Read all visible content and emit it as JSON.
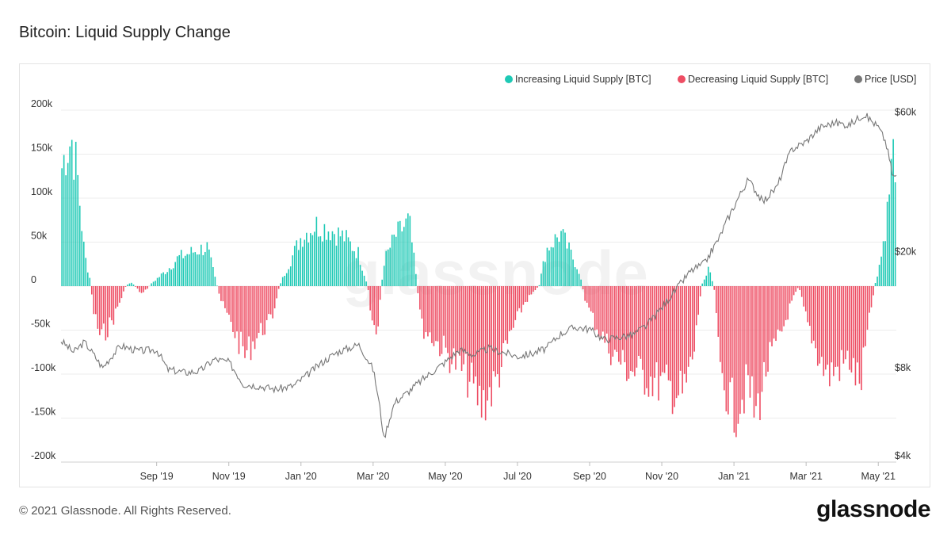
{
  "header": {
    "title": "Bitcoin: Liquid Supply Change"
  },
  "footer": {
    "copyright": "© 2021 Glassnode. All Rights Reserved.",
    "brand": "glassnode"
  },
  "watermark": "glassnode",
  "colors": {
    "increase": "#1ec9b5",
    "decrease": "#ee4d63",
    "price": "#777777",
    "grid": "#ececec"
  },
  "chart_data": {
    "type": "bar+line",
    "title": "Bitcoin: Liquid Supply Change",
    "legend": [
      {
        "name": "Increasing Liquid Supply [BTC]",
        "color": "#1ec9b5"
      },
      {
        "name": "Decreasing Liquid Supply [BTC]",
        "color": "#ee4d63"
      },
      {
        "name": "Price [USD]",
        "color": "#777777"
      }
    ],
    "legend_position": "top-right",
    "y_left": {
      "ylim": [
        -200000,
        200000
      ],
      "ticks": [
        200000,
        150000,
        100000,
        50000,
        0,
        -50000,
        -100000,
        -150000,
        -200000
      ],
      "tick_labels": [
        "200k",
        "150k",
        "100k",
        "50k",
        "0",
        "-50k",
        "-100k",
        "-150k",
        "-200k"
      ]
    },
    "y_right": {
      "scale": "log",
      "ylim": [
        4000,
        64000
      ],
      "ticks": [
        60000,
        20000,
        8000,
        4000
      ],
      "tick_labels": [
        "$60k",
        "$20k",
        "$8k",
        "$4k"
      ]
    },
    "x_ticks": [
      {
        "label": "Sep '19",
        "t": 1.0
      },
      {
        "label": "Nov '19",
        "t": 3.0
      },
      {
        "label": "Jan '20",
        "t": 5.0
      },
      {
        "label": "Mar '20",
        "t": 7.0
      },
      {
        "label": "May '20",
        "t": 9.0
      },
      {
        "label": "Jul '20",
        "t": 11.0
      },
      {
        "label": "Sep '20",
        "t": 13.0
      },
      {
        "label": "Nov '20",
        "t": 15.0
      },
      {
        "label": "Jan '21",
        "t": 17.0
      },
      {
        "label": "Mar '21",
        "t": 19.0
      },
      {
        "label": "May '21",
        "t": 21.0
      }
    ],
    "x_range_months": [
      -1.65,
      21.5
    ],
    "supply_change_keyframes": [
      [
        -1.65,
        140000
      ],
      [
        -1.5,
        170000
      ],
      [
        -1.35,
        180000
      ],
      [
        -1.2,
        140000
      ],
      [
        -1.0,
        40000
      ],
      [
        -0.85,
        10000
      ],
      [
        -0.75,
        -30000
      ],
      [
        -0.55,
        -65000
      ],
      [
        -0.2,
        -40000
      ],
      [
        0.15,
        0
      ],
      [
        0.3,
        5000
      ],
      [
        0.6,
        -10000
      ],
      [
        0.9,
        5000
      ],
      [
        1.3,
        20000
      ],
      [
        1.6,
        35000
      ],
      [
        2.0,
        42000
      ],
      [
        2.4,
        48000
      ],
      [
        2.65,
        5000
      ],
      [
        2.8,
        -20000
      ],
      [
        3.2,
        -60000
      ],
      [
        3.45,
        -85000
      ],
      [
        3.8,
        -60000
      ],
      [
        4.2,
        -40000
      ],
      [
        4.4,
        0
      ],
      [
        4.7,
        30000
      ],
      [
        5.0,
        60000
      ],
      [
        5.4,
        75000
      ],
      [
        5.8,
        70000
      ],
      [
        6.2,
        60000
      ],
      [
        6.6,
        40000
      ],
      [
        6.85,
        0
      ],
      [
        6.95,
        -40000
      ],
      [
        7.1,
        -60000
      ],
      [
        7.3,
        30000
      ],
      [
        7.6,
        60000
      ],
      [
        8.0,
        80000
      ],
      [
        8.2,
        10000
      ],
      [
        8.35,
        -50000
      ],
      [
        8.8,
        -70000
      ],
      [
        9.2,
        -90000
      ],
      [
        9.6,
        -110000
      ],
      [
        10.0,
        -145000
      ],
      [
        10.4,
        -120000
      ],
      [
        10.8,
        -60000
      ],
      [
        11.2,
        -20000
      ],
      [
        11.6,
        0
      ],
      [
        11.8,
        45000
      ],
      [
        12.2,
        65000
      ],
      [
        12.7,
        20000
      ],
      [
        12.9,
        -20000
      ],
      [
        13.2,
        -50000
      ],
      [
        13.6,
        -80000
      ],
      [
        14.0,
        -100000
      ],
      [
        14.5,
        -110000
      ],
      [
        15.0,
        -120000
      ],
      [
        15.6,
        -135000
      ],
      [
        15.9,
        -80000
      ],
      [
        16.1,
        0
      ],
      [
        16.3,
        25000
      ],
      [
        16.45,
        0
      ],
      [
        16.6,
        -100000
      ],
      [
        17.0,
        -155000
      ],
      [
        17.4,
        -120000
      ],
      [
        17.6,
        -160000
      ],
      [
        17.9,
        -100000
      ],
      [
        18.3,
        -60000
      ],
      [
        18.6,
        -20000
      ],
      [
        18.8,
        0
      ],
      [
        19.0,
        -40000
      ],
      [
        19.3,
        -80000
      ],
      [
        19.6,
        -110000
      ],
      [
        19.9,
        -100000
      ],
      [
        20.2,
        -90000
      ],
      [
        20.5,
        -125000
      ],
      [
        20.7,
        -60000
      ],
      [
        20.9,
        0
      ],
      [
        21.1,
        40000
      ],
      [
        21.25,
        90000
      ],
      [
        21.4,
        160000
      ]
    ],
    "price_keyframes": [
      [
        -1.65,
        10400
      ],
      [
        -1.3,
        9500
      ],
      [
        -1.0,
        10300
      ],
      [
        -0.5,
        8400
      ],
      [
        0.0,
        10000
      ],
      [
        0.5,
        9600
      ],
      [
        1.0,
        9700
      ],
      [
        1.3,
        8300
      ],
      [
        1.8,
        8100
      ],
      [
        2.2,
        8200
      ],
      [
        2.6,
        9000
      ],
      [
        3.0,
        8800
      ],
      [
        3.4,
        7400
      ],
      [
        3.8,
        7300
      ],
      [
        4.3,
        7100
      ],
      [
        4.8,
        7300
      ],
      [
        5.2,
        8000
      ],
      [
        5.6,
        8800
      ],
      [
        6.0,
        9500
      ],
      [
        6.6,
        10100
      ],
      [
        7.0,
        8300
      ],
      [
        7.3,
        4800
      ],
      [
        7.6,
        6400
      ],
      [
        8.0,
        7000
      ],
      [
        8.5,
        7900
      ],
      [
        9.0,
        8800
      ],
      [
        9.4,
        9700
      ],
      [
        9.8,
        9300
      ],
      [
        10.2,
        9800
      ],
      [
        10.6,
        9500
      ],
      [
        11.0,
        9200
      ],
      [
        11.4,
        9400
      ],
      [
        11.8,
        9800
      ],
      [
        12.2,
        11000
      ],
      [
        12.6,
        11600
      ],
      [
        13.0,
        11400
      ],
      [
        13.4,
        10500
      ],
      [
        13.8,
        10700
      ],
      [
        14.2,
        10900
      ],
      [
        14.6,
        11800
      ],
      [
        15.0,
        13500
      ],
      [
        15.4,
        15600
      ],
      [
        15.8,
        18000
      ],
      [
        16.2,
        19200
      ],
      [
        16.6,
        23500
      ],
      [
        17.0,
        30000
      ],
      [
        17.4,
        37000
      ],
      [
        17.8,
        31000
      ],
      [
        18.2,
        35000
      ],
      [
        18.6,
        47000
      ],
      [
        19.0,
        50000
      ],
      [
        19.4,
        56000
      ],
      [
        19.8,
        58000
      ],
      [
        20.2,
        57000
      ],
      [
        20.6,
        62000
      ],
      [
        21.0,
        56000
      ],
      [
        21.2,
        50000
      ],
      [
        21.4,
        38000
      ]
    ]
  }
}
